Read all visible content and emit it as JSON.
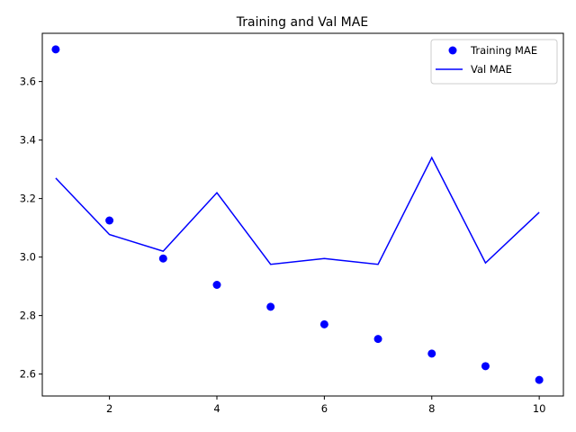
{
  "chart_data": {
    "type": "line",
    "title": "Training and Val MAE",
    "xlabel": "",
    "ylabel": "",
    "xlim": [
      0.75,
      10.45
    ],
    "ylim": [
      2.525,
      3.765
    ],
    "xticks": [
      2,
      4,
      6,
      8,
      10
    ],
    "yticks": [
      2.6,
      2.8,
      3.0,
      3.2,
      3.4,
      3.6
    ],
    "ytick_labels": [
      "2.6",
      "2.8",
      "3.0",
      "3.2",
      "3.4",
      "3.6"
    ],
    "grid": false,
    "legend_position": "top-right",
    "x": [
      1,
      2,
      3,
      4,
      5,
      6,
      7,
      8,
      9,
      10
    ],
    "series": [
      {
        "name": "Training MAE",
        "style": "points",
        "color": "#0000ff",
        "values": [
          3.71,
          3.125,
          2.995,
          2.905,
          2.83,
          2.77,
          2.72,
          2.67,
          2.627,
          2.58
        ]
      },
      {
        "name": "Val MAE",
        "style": "line",
        "color": "#0000ff",
        "values": [
          3.27,
          3.077,
          3.02,
          3.22,
          2.975,
          2.995,
          2.975,
          3.34,
          2.98,
          3.153
        ]
      }
    ]
  }
}
